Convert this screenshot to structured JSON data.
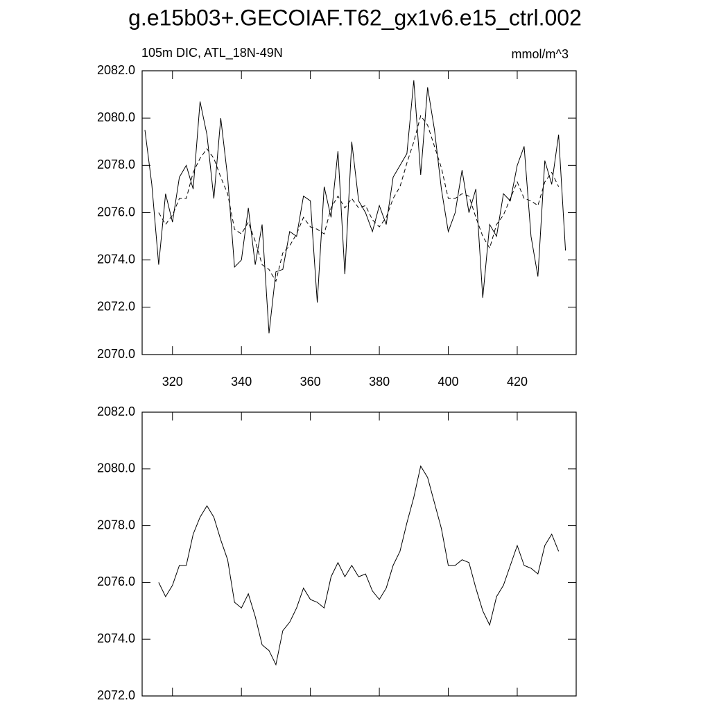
{
  "chart_data": [
    {
      "type": "line",
      "title": "g.e15b03+.GECOIAF.T62_gx1v6.e15_ctrl.002",
      "subtitle_left": "105m DIC, ATL_18N-49N",
      "subtitle_right": "mmol/m^3",
      "x": [
        312,
        314,
        316,
        318,
        320,
        322,
        324,
        326,
        328,
        330,
        332,
        334,
        336,
        338,
        340,
        342,
        344,
        346,
        348,
        350,
        352,
        354,
        356,
        358,
        360,
        362,
        364,
        366,
        368,
        370,
        372,
        374,
        376,
        378,
        380,
        382,
        384,
        386,
        388,
        390,
        392,
        394,
        396,
        398,
        400,
        402,
        404,
        406,
        408,
        410,
        412,
        414,
        416,
        418,
        420,
        422,
        424,
        426,
        428,
        430,
        432,
        434
      ],
      "series": [
        {
          "color": "#000000",
          "dash": "solid",
          "values": [
            2079.5,
            2077.2,
            2073.8,
            2076.8,
            2075.6,
            2077.5,
            2078.0,
            2077.0,
            2080.7,
            2079.3,
            2076.6,
            2080.0,
            2077.5,
            2073.7,
            2074.0,
            2076.2,
            2073.8,
            2075.5,
            2070.9,
            2073.5,
            2073.6,
            2075.2,
            2075.0,
            2076.7,
            2076.5,
            2072.2,
            2077.1,
            2075.8,
            2078.6,
            2073.4,
            2079.0,
            2076.5,
            2076.0,
            2075.2,
            2076.3,
            2075.5,
            2077.5,
            2078.0,
            2078.5,
            2081.6,
            2077.6,
            2081.3,
            2079.5,
            2077.0,
            2075.2,
            2076.0,
            2077.8,
            2076.0,
            2077.0,
            2072.4,
            2075.5,
            2075.0,
            2076.8,
            2076.5,
            2078.0,
            2078.8,
            2075.0,
            2073.3,
            2078.2,
            2077.2,
            2079.3,
            2074.4
          ]
        },
        {
          "color": "#000000",
          "dash": "dashed",
          "values": [
            null,
            null,
            2076.0,
            2075.5,
            2075.9,
            2076.6,
            2076.6,
            2077.7,
            2078.3,
            2078.7,
            2078.3,
            2077.5,
            2076.8,
            2075.3,
            2075.1,
            2075.6,
            2074.8,
            2073.8,
            2073.6,
            2073.1,
            2074.3,
            2074.6,
            2075.1,
            2075.8,
            2075.4,
            2075.3,
            2075.1,
            2076.2,
            2076.7,
            2076.2,
            2076.6,
            2076.2,
            2076.3,
            2075.7,
            2075.4,
            2075.8,
            2076.6,
            2077.1,
            2078.1,
            2079.0,
            2080.1,
            2079.7,
            2078.8,
            2077.9,
            2076.6,
            2076.6,
            2076.8,
            2076.7,
            2075.8,
            2075.0,
            2074.5,
            2075.5,
            2075.9,
            2076.6,
            2077.3,
            2076.6,
            2076.5,
            2076.3,
            2077.3,
            2077.7,
            2077.1,
            null
          ]
        }
      ],
      "xlim": [
        311.2,
        437.1
      ],
      "xticks": [
        320,
        340,
        360,
        380,
        400,
        420
      ],
      "show_xtick_labels": true,
      "ylim": [
        2070,
        2082
      ],
      "yticks": [
        {
          "value": 2070,
          "label": "2070.0"
        },
        {
          "value": 2072,
          "label": "2072.0"
        },
        {
          "value": 2074,
          "label": "2074.0"
        },
        {
          "value": 2076,
          "label": "2076.0"
        },
        {
          "value": 2078,
          "label": "2078.0"
        },
        {
          "value": 2080,
          "label": "2080.0"
        },
        {
          "value": 2082,
          "label": "2082.0"
        }
      ]
    },
    {
      "type": "line",
      "x": [
        312,
        314,
        316,
        318,
        320,
        322,
        324,
        326,
        328,
        330,
        332,
        334,
        336,
        338,
        340,
        342,
        344,
        346,
        348,
        350,
        352,
        354,
        356,
        358,
        360,
        362,
        364,
        366,
        368,
        370,
        372,
        374,
        376,
        378,
        380,
        382,
        384,
        386,
        388,
        390,
        392,
        394,
        396,
        398,
        400,
        402,
        404,
        406,
        408,
        410,
        412,
        414,
        416,
        418,
        420,
        422,
        424,
        426,
        428,
        430,
        432,
        434
      ],
      "series": [
        {
          "color": "#000000",
          "dash": "solid",
          "values": [
            null,
            null,
            2076.0,
            2075.5,
            2075.9,
            2076.6,
            2076.6,
            2077.7,
            2078.3,
            2078.7,
            2078.3,
            2077.5,
            2076.8,
            2075.3,
            2075.1,
            2075.6,
            2074.8,
            2073.8,
            2073.6,
            2073.1,
            2074.3,
            2074.6,
            2075.1,
            2075.8,
            2075.4,
            2075.3,
            2075.1,
            2076.2,
            2076.7,
            2076.2,
            2076.6,
            2076.2,
            2076.3,
            2075.7,
            2075.4,
            2075.8,
            2076.6,
            2077.1,
            2078.1,
            2079.0,
            2080.1,
            2079.7,
            2078.8,
            2077.9,
            2076.6,
            2076.6,
            2076.8,
            2076.7,
            2075.8,
            2075.0,
            2074.5,
            2075.5,
            2075.9,
            2076.6,
            2077.3,
            2076.6,
            2076.5,
            2076.3,
            2077.3,
            2077.7,
            2077.1,
            null
          ]
        }
      ],
      "xlim": [
        311.2,
        437.1
      ],
      "xticks": [
        320,
        340,
        360,
        380,
        400,
        420
      ],
      "show_xtick_labels": false,
      "ylim": [
        2072,
        2082
      ],
      "yticks": [
        {
          "value": 2072,
          "label": "2072.0"
        },
        {
          "value": 2074,
          "label": "2074.0"
        },
        {
          "value": 2076,
          "label": "2076.0"
        },
        {
          "value": 2078,
          "label": "2078.0"
        },
        {
          "value": 2080,
          "label": "2080.0"
        },
        {
          "value": 2082,
          "label": "2082.0"
        }
      ]
    }
  ]
}
